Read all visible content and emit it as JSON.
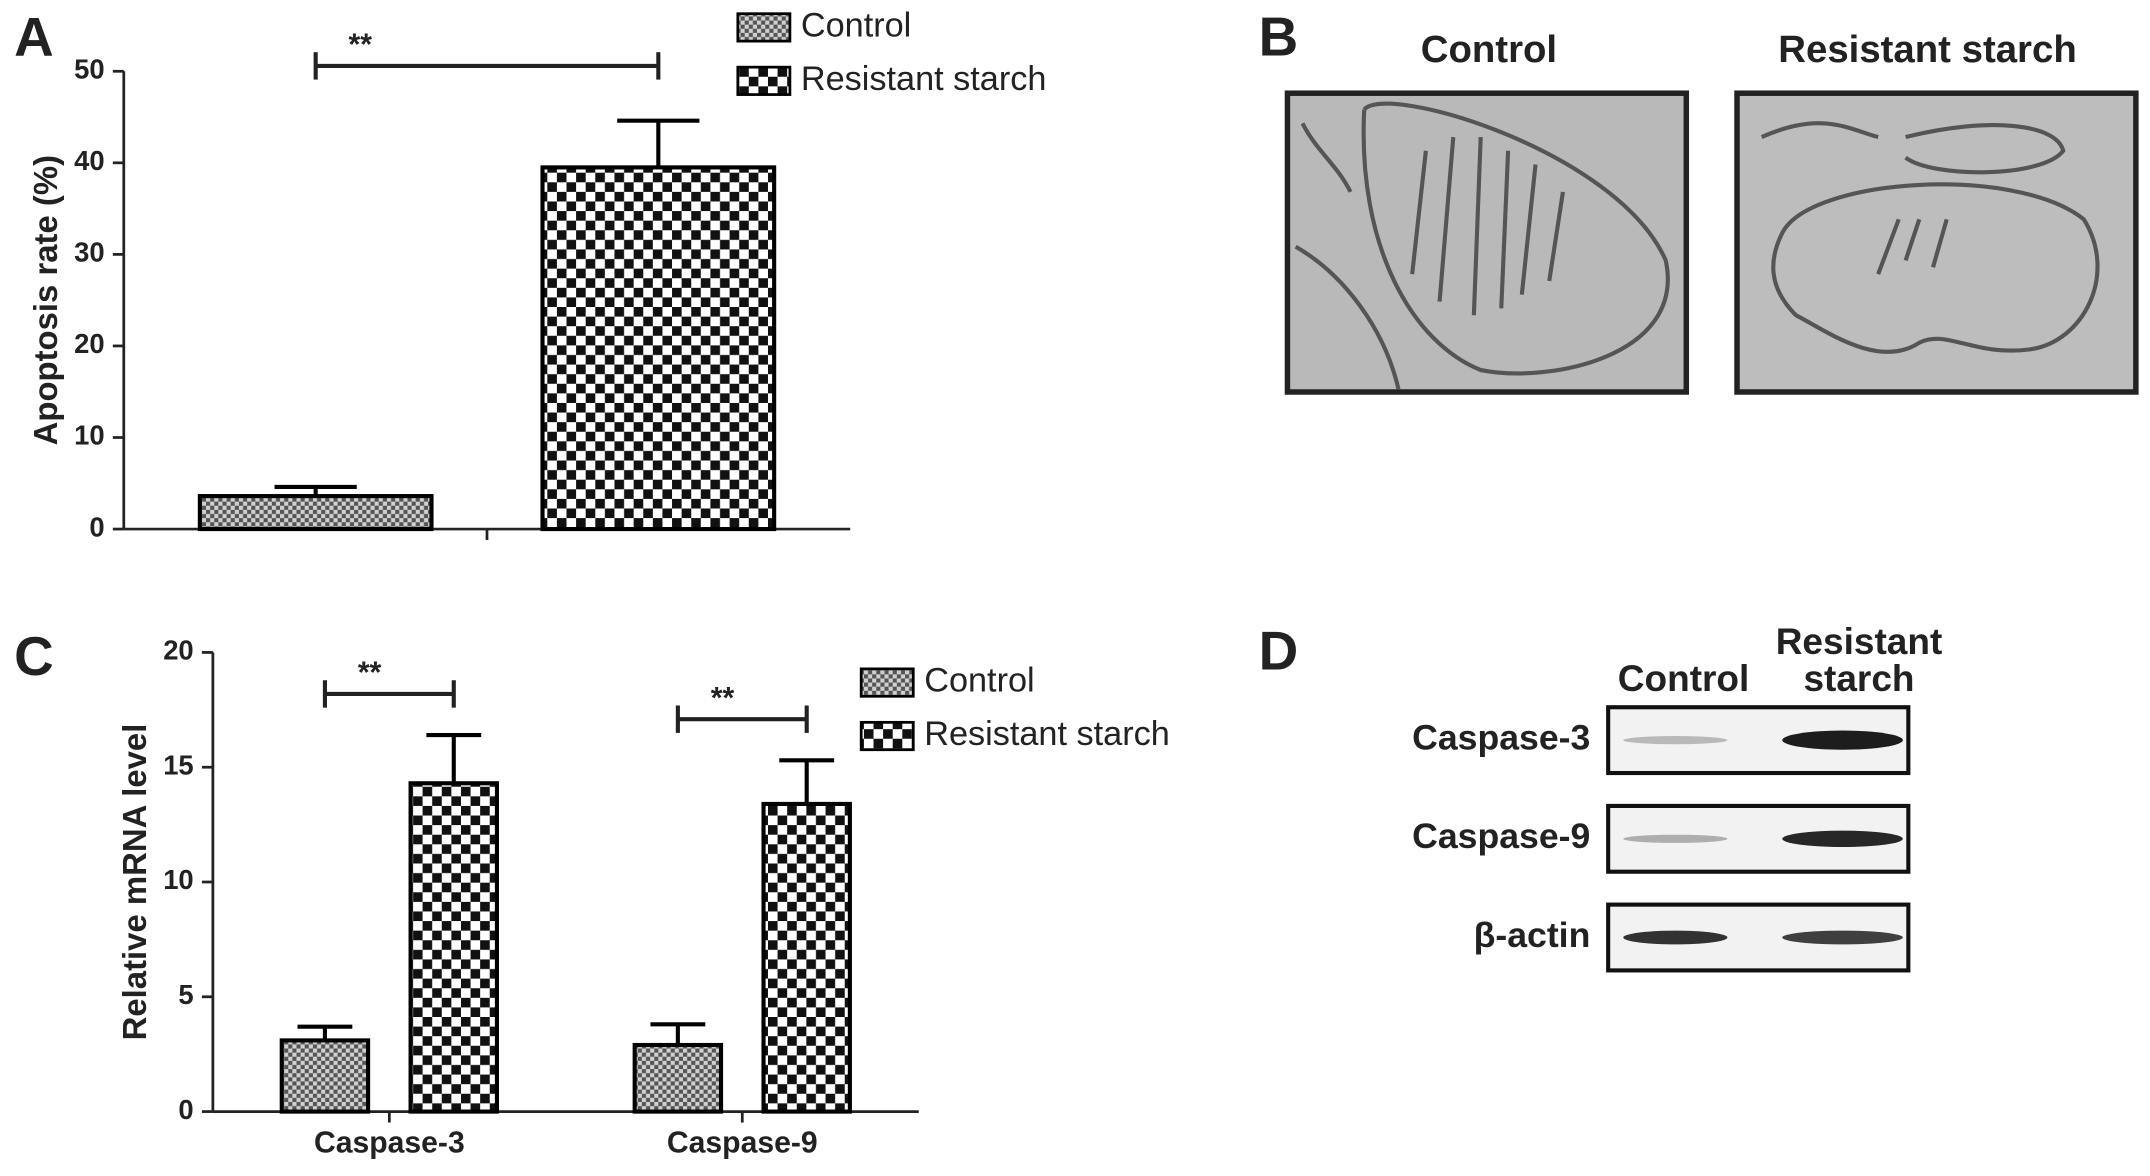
{
  "panel_letters": [
    "A",
    "B",
    "C",
    "D"
  ],
  "chart_data": [
    {
      "type": "bar",
      "ylabel": "Apoptosis rate (%)",
      "categories": [
        null
      ],
      "series": [
        {
          "name": "Control",
          "color": "#000000",
          "values": [
            3.6
          ],
          "errors": [
            1.0
          ]
        },
        {
          "name": "Resistant starch",
          "color": "#000000",
          "values": [
            39.5
          ],
          "errors": [
            5.1
          ]
        }
      ],
      "annotations": [
        "**"
      ],
      "ylim": [
        0,
        50
      ],
      "yticks": [
        0,
        10,
        20,
        30,
        40,
        50
      ]
    },
    {
      "type": "bar",
      "ylabel": "Relative mRNA level",
      "categories": [
        "Caspase-3",
        "Caspase-9"
      ],
      "series": [
        {
          "name": "Control",
          "color": "#000000",
          "values": [
            3.1,
            2.9
          ],
          "errors": [
            0.6,
            0.9
          ]
        },
        {
          "name": "Resistant starch",
          "color": "#000000",
          "values": [
            14.3,
            13.4
          ],
          "errors": [
            2.1,
            1.9
          ]
        }
      ],
      "annotations": [
        "**",
        "**"
      ],
      "ylim": [
        0,
        20
      ],
      "yticks": [
        0,
        5,
        10,
        15,
        20
      ]
    }
  ],
  "micrographs": {
    "titles": [
      "Control",
      "Resistant starch"
    ]
  },
  "blot": {
    "columns": [
      [
        "Control"
      ],
      [
        "Resistant",
        "starch"
      ]
    ],
    "rows": [
      "Caspase-3",
      "Caspase-9",
      "β-actin"
    ]
  }
}
